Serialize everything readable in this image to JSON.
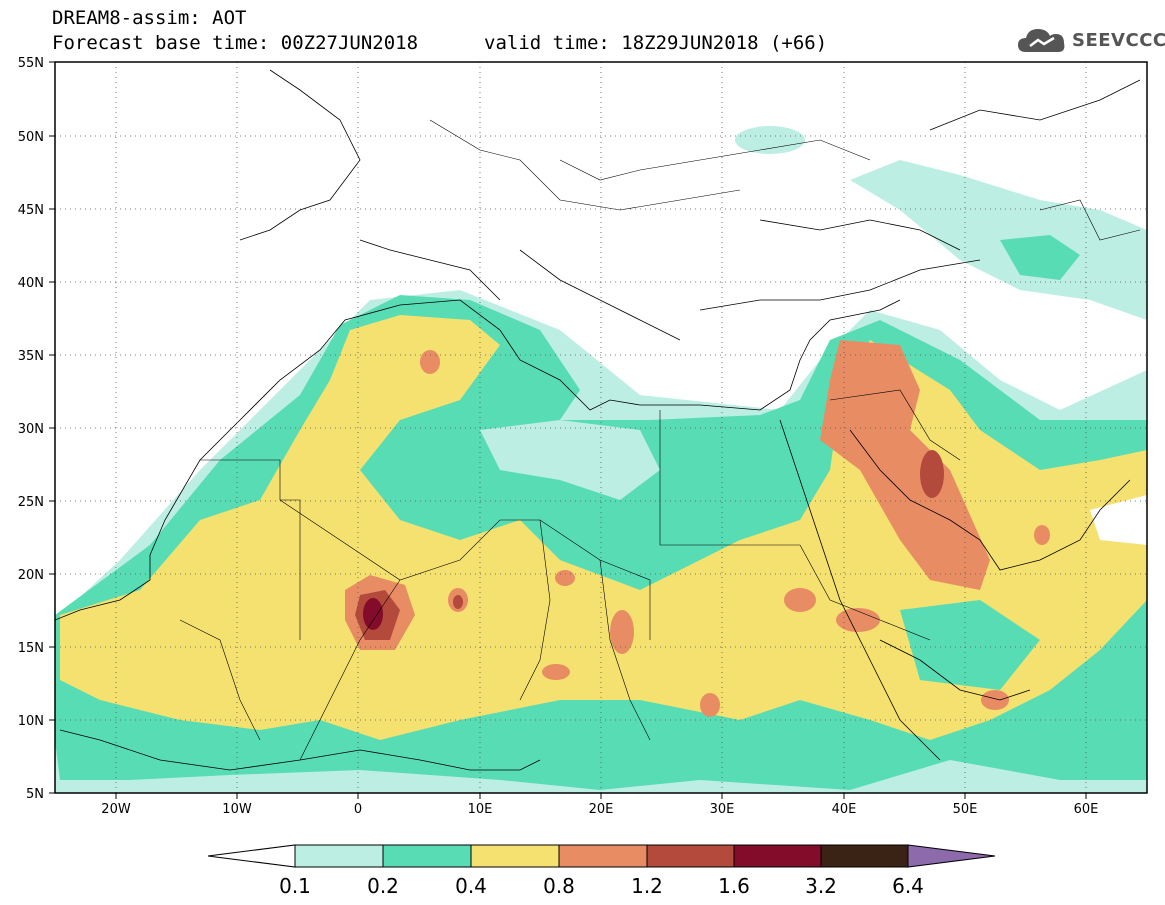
{
  "title_line1": "DREAM8-assim: AOT",
  "title_line2_left": "Forecast base time: 00Z27JUN2018",
  "title_line2_right": "valid time: 18Z29JUN2018 (+66)",
  "logo": {
    "text": "SEEVCCC",
    "icon": "cloud-logo-icon"
  },
  "lat_labels": [
    "55N",
    "50N",
    "45N",
    "40N",
    "35N",
    "30N",
    "25N",
    "20N",
    "15N",
    "10N",
    "5N"
  ],
  "lon_labels": [
    "20W",
    "10W",
    "0",
    "10E",
    "20E",
    "30E",
    "40E",
    "50E",
    "60E"
  ],
  "colorbar": {
    "labels": [
      "0.1",
      "0.2",
      "0.4",
      "0.8",
      "1.2",
      "1.6",
      "3.2",
      "6.4"
    ],
    "colors": [
      "#ffffff",
      "#bdeee4",
      "#58dcb4",
      "#f5e170",
      "#e88c64",
      "#b44a3c",
      "#830c2a",
      "#3a2214",
      "#8c6aac"
    ]
  }
}
